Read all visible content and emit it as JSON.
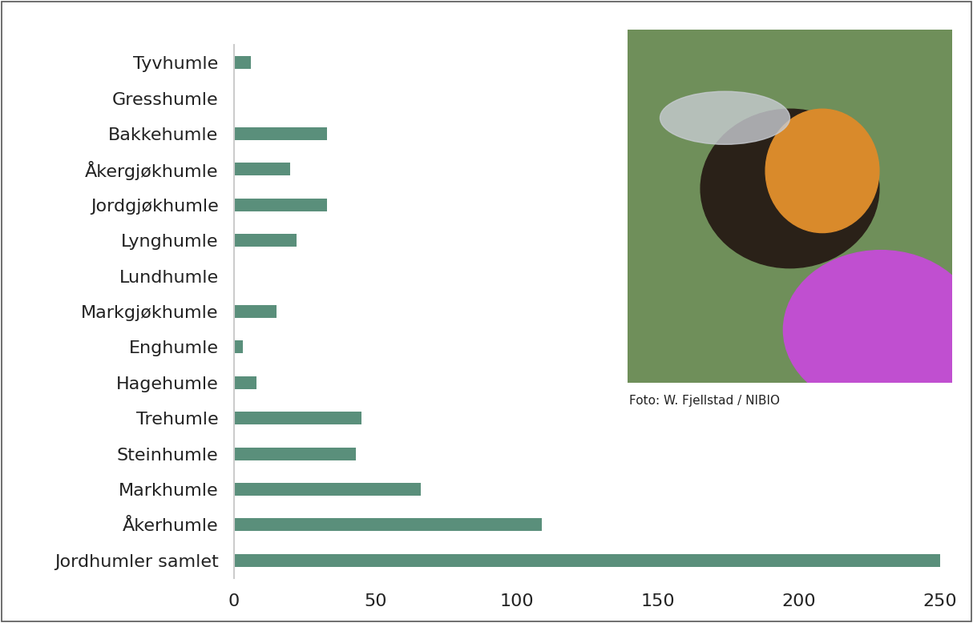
{
  "chart_data": {
    "type": "bar",
    "orientation": "horizontal",
    "categories": [
      "Tyvhumle",
      "Gresshumle",
      "Bakkehumle",
      "Åkergjøkhumle",
      "Jordgjøkhumle",
      "Lynghumle",
      "Lundhumle",
      "Markgjøkhumle",
      "Enghumle",
      "Hagehumle",
      "Trehumle",
      "Steinhumle",
      "Markhumle",
      "Åkerhumle",
      "Jordhumler samlet"
    ],
    "values": [
      6,
      0,
      33,
      20,
      33,
      22,
      0,
      15,
      3,
      8,
      45,
      43,
      66,
      109,
      250
    ],
    "color": "#5a8f7b",
    "xlim": [
      0,
      250
    ],
    "xticks": [
      0,
      50,
      100,
      150,
      200,
      250
    ],
    "grid": false,
    "annotations": [
      "Foto: W. Fjellstad / NIBIO"
    ]
  }
}
